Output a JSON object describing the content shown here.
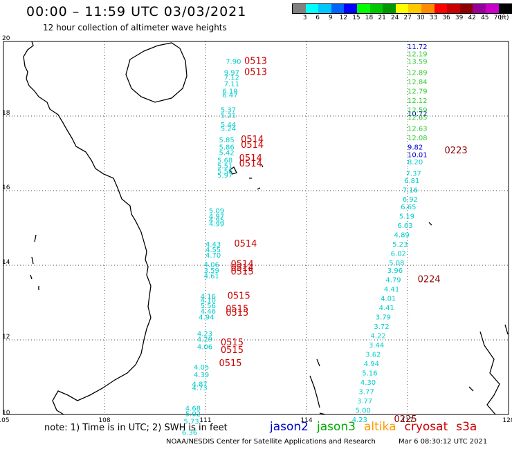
{
  "title": "00:00 – 11:59 UTC 03/03/2021",
  "subtitle": "12 hour collection of altimeter wave heights",
  "legend": {
    "colors": [
      "#808080",
      "#00ffff",
      "#00c8ff",
      "#0064ff",
      "#0000ff",
      "#00ff00",
      "#00c800",
      "#009600",
      "#ffff00",
      "#ffc800",
      "#ff8c00",
      "#ff0000",
      "#c80000",
      "#8c0000",
      "#960096",
      "#c800c8",
      "#000000"
    ],
    "labels": [
      "3",
      "6",
      "9",
      "12",
      "15",
      "18",
      "21",
      "24",
      "27",
      "30",
      "33",
      "36",
      "39",
      "42",
      "45",
      "70",
      "(ft)"
    ]
  },
  "axes": {
    "lon_labels": [
      "105",
      "108",
      "111",
      "114",
      "117",
      "120"
    ],
    "lat_labels": [
      "20",
      "18",
      "16",
      "14",
      "12",
      "10"
    ]
  },
  "chart_data": {
    "type": "scatter",
    "x_range": [
      105,
      120
    ],
    "y_range": [
      10,
      20
    ],
    "units": "ft",
    "tracks": [
      {
        "mission": "jason2",
        "color": "#0000cc",
        "lon": 117.0,
        "points": [
          [
            19.8,
            "11.72"
          ],
          [
            17.1,
            "9.82"
          ],
          [
            16.9,
            "10.01"
          ],
          [
            18.0,
            "10.72"
          ]
        ]
      },
      {
        "mission": "jason3",
        "color": "#33cc33",
        "lon": 117.0,
        "points": [
          [
            19.6,
            "12.19"
          ],
          [
            19.4,
            "13.59"
          ],
          [
            19.1,
            "12.89"
          ],
          [
            18.85,
            "12.84"
          ],
          [
            18.6,
            "12.79"
          ],
          [
            18.35,
            "12.12"
          ],
          [
            18.1,
            "12.59"
          ],
          [
            17.9,
            "12.65"
          ],
          [
            17.6,
            "12.63"
          ],
          [
            17.35,
            "12.08"
          ]
        ]
      },
      {
        "mission": "cryosat",
        "color": "#00cccc",
        "points": [
          [
            111.6,
            19.4,
            "7.90"
          ],
          [
            111.55,
            19.1,
            "9.97"
          ],
          [
            111.55,
            18.97,
            "7.12"
          ],
          [
            111.55,
            18.8,
            "7.11"
          ],
          [
            111.5,
            18.6,
            "6.19"
          ],
          [
            111.5,
            18.5,
            "6.47"
          ],
          [
            111.45,
            18.1,
            "5.37"
          ],
          [
            111.45,
            17.95,
            "5.21"
          ],
          [
            111.45,
            17.7,
            "5.44"
          ],
          [
            111.45,
            17.6,
            "5.24"
          ],
          [
            111.4,
            17.3,
            "5.85"
          ],
          [
            111.4,
            17.1,
            "5.86"
          ],
          [
            111.4,
            16.95,
            "5.42"
          ],
          [
            111.35,
            16.75,
            "5.68"
          ],
          [
            111.35,
            16.6,
            "5.51"
          ],
          [
            111.35,
            16.45,
            "5.56"
          ],
          [
            111.35,
            16.35,
            "5.97"
          ],
          [
            111.1,
            15.4,
            "5.09"
          ],
          [
            111.1,
            15.25,
            "4.97"
          ],
          [
            111.1,
            15.15,
            "4.95"
          ],
          [
            111.1,
            15.05,
            "4.99"
          ],
          [
            111.0,
            14.5,
            "4.43"
          ],
          [
            111.0,
            14.35,
            "4.55"
          ],
          [
            111.0,
            14.2,
            "4.70"
          ],
          [
            110.95,
            13.95,
            "4.06"
          ],
          [
            110.95,
            13.8,
            "3.59"
          ],
          [
            110.95,
            13.65,
            "4.61"
          ],
          [
            110.85,
            13.1,
            "4.16"
          ],
          [
            110.85,
            13.0,
            "4.10"
          ],
          [
            110.85,
            12.85,
            "5.56"
          ],
          [
            110.85,
            12.7,
            "4.46"
          ],
          [
            110.8,
            12.55,
            "4.94"
          ],
          [
            110.75,
            12.1,
            "4.23"
          ],
          [
            110.75,
            11.95,
            "4.29"
          ],
          [
            110.75,
            11.75,
            "4.06"
          ],
          [
            110.65,
            11.2,
            "4.05"
          ],
          [
            110.65,
            11.0,
            "4.39"
          ],
          [
            110.6,
            10.75,
            "4.87"
          ],
          [
            110.6,
            10.65,
            "4.73"
          ],
          [
            110.4,
            10.1,
            "4.68"
          ],
          [
            110.4,
            9.95,
            "5.02"
          ],
          [
            110.35,
            9.75,
            "5.73"
          ],
          [
            110.3,
            9.45,
            "6.36"
          ],
          [
            117.0,
            16.7,
            "8.20"
          ],
          [
            116.95,
            16.4,
            "7.37"
          ],
          [
            116.9,
            16.2,
            "6.81"
          ],
          [
            116.85,
            15.95,
            "7.16"
          ],
          [
            116.85,
            15.7,
            "6.92"
          ],
          [
            116.8,
            15.5,
            "6.65"
          ],
          [
            116.75,
            15.25,
            "5.19"
          ],
          [
            116.7,
            15.0,
            "6.63"
          ],
          [
            116.6,
            14.75,
            "4.89"
          ],
          [
            116.55,
            14.5,
            "5.23"
          ],
          [
            116.5,
            14.25,
            "6.02"
          ],
          [
            116.45,
            14.0,
            "5.08"
          ],
          [
            116.4,
            13.8,
            "3.96"
          ],
          [
            116.35,
            13.55,
            "4.79"
          ],
          [
            116.3,
            13.3,
            "4.41"
          ],
          [
            116.2,
            13.05,
            "4.01"
          ],
          [
            116.15,
            12.8,
            "4.41"
          ],
          [
            116.05,
            12.55,
            "3.79"
          ],
          [
            116.0,
            12.3,
            "3.72"
          ],
          [
            115.9,
            12.05,
            "4.22"
          ],
          [
            115.85,
            11.8,
            "3.44"
          ],
          [
            115.75,
            11.55,
            "3.62"
          ],
          [
            115.7,
            11.3,
            "4.94"
          ],
          [
            115.65,
            11.05,
            "5.16"
          ],
          [
            115.6,
            10.8,
            "4.30"
          ],
          [
            115.55,
            10.55,
            "3.77"
          ],
          [
            115.5,
            10.3,
            "3.77"
          ],
          [
            115.45,
            10.05,
            "5.00"
          ],
          [
            115.35,
            9.8,
            "4.23"
          ]
        ]
      },
      {
        "mission": "s3a",
        "color": "#cc0000",
        "points": [
          [
            112.15,
            19.4,
            "0513"
          ],
          [
            112.15,
            19.1,
            "0513"
          ],
          [
            112.05,
            17.3,
            "0514"
          ],
          [
            112.05,
            17.15,
            "0514"
          ],
          [
            112.0,
            16.8,
            "0514"
          ],
          [
            112.0,
            16.65,
            "0514"
          ],
          [
            111.85,
            14.5,
            "0514"
          ],
          [
            111.75,
            13.95,
            "0514"
          ],
          [
            111.75,
            13.85,
            "0514"
          ],
          [
            111.75,
            13.75,
            "0515"
          ],
          [
            111.65,
            13.1,
            "0515"
          ],
          [
            111.6,
            12.75,
            "0515"
          ],
          [
            111.6,
            12.65,
            "0515"
          ],
          [
            111.45,
            11.85,
            "0515"
          ],
          [
            111.45,
            11.65,
            "0515"
          ],
          [
            111.4,
            11.3,
            "0515"
          ]
        ]
      },
      {
        "mission": "cryosat",
        "color": "#8b0000",
        "points": [
          [
            118.1,
            17.0,
            "0223"
          ],
          [
            117.3,
            13.55,
            "0224"
          ],
          [
            116.6,
            9.8,
            "0225"
          ]
        ]
      }
    ]
  },
  "footer": {
    "note": "note:  1) Time is in UTC;  2) SWH is in feet",
    "missions": [
      {
        "name": "jason2",
        "color": "#0000cc"
      },
      {
        "name": "jason3",
        "color": "#00aa00"
      },
      {
        "name": "altika",
        "color": "#ff9900"
      },
      {
        "name": "cryosat",
        "color": "#cc0000"
      },
      {
        "name": "s3a",
        "color": "#cc0000"
      }
    ],
    "credit": "NOAA/NESDIS Center for Satellite Applications and Research",
    "timestamp": "Mar  6 08:30:12 UTC 2021"
  }
}
